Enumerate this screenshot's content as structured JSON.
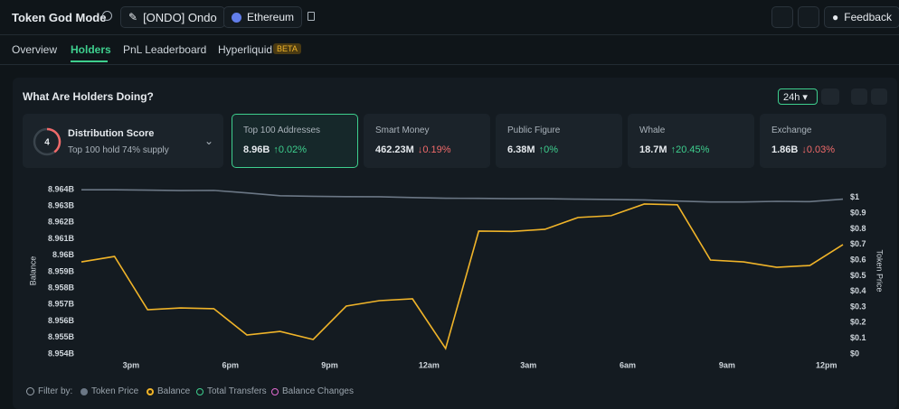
{
  "header": {
    "title": "Token God Mode",
    "token": "[ONDO] Ondo",
    "chain": "Ethereum",
    "feedback": "Feedback"
  },
  "tabs": [
    {
      "label": "Overview"
    },
    {
      "label": "Holders"
    },
    {
      "label": "PnL Leaderboard"
    },
    {
      "label": "Hyperliquid",
      "badge": "BETA"
    }
  ],
  "panel": {
    "title": "What Are Holders Doing?",
    "timeframe": "24h",
    "distribution": {
      "score": 4,
      "title": "Distribution Score",
      "subtitle": "Top 100 hold 74% supply"
    },
    "cards": [
      {
        "title": "Top 100 Addresses",
        "value": "8.96B",
        "change": "0.02%",
        "direction": "up"
      },
      {
        "title": "Smart Money",
        "value": "462.23M",
        "change": "0.19%",
        "direction": "down"
      },
      {
        "title": "Public Figure",
        "value": "6.38M",
        "change": "0%",
        "direction": "up"
      },
      {
        "title": "Whale",
        "value": "18.7M",
        "change": "20.45%",
        "direction": "up"
      },
      {
        "title": "Exchange",
        "value": "1.86B",
        "change": "0.03%",
        "direction": "down"
      }
    ],
    "filter": {
      "label": "Filter by:",
      "extra": [
        "Total Transfers",
        "Balance Changes"
      ]
    }
  },
  "chart_data": {
    "type": "line",
    "x": [
      1.5,
      2.5,
      3.5,
      4.5,
      5.5,
      6.5,
      7.5,
      8.5,
      9.5,
      10.5,
      11.5,
      12.5,
      13.5,
      14.5,
      15.5,
      16.5,
      17.5,
      18.5,
      19.5,
      20.5,
      21.5,
      22.5,
      23.5,
      24.5
    ],
    "xlim": [
      1.5,
      24.5
    ],
    "xticks": [
      {
        "value": 3,
        "label": "3pm"
      },
      {
        "value": 6,
        "label": "6pm"
      },
      {
        "value": 9,
        "label": "9pm"
      },
      {
        "value": 12,
        "label": "12am"
      },
      {
        "value": 15,
        "label": "3am"
      },
      {
        "value": 18,
        "label": "6am"
      },
      {
        "value": 21,
        "label": "9am"
      },
      {
        "value": 24,
        "label": "12pm"
      }
    ],
    "ylabel": "Balance",
    "y2label": "Token Price",
    "ylim": [
      8.954,
      8.96427
    ],
    "yticks": [
      {
        "value": 8.954,
        "label": "8.954B"
      },
      {
        "value": 8.955,
        "label": "8.955B"
      },
      {
        "value": 8.956,
        "label": "8.956B"
      },
      {
        "value": 8.957,
        "label": "8.957B"
      },
      {
        "value": 8.958,
        "label": "8.958B"
      },
      {
        "value": 8.959,
        "label": "8.959B"
      },
      {
        "value": 8.96,
        "label": "8.96B"
      },
      {
        "value": 8.961,
        "label": "8.961B"
      },
      {
        "value": 8.962,
        "label": "8.962B"
      },
      {
        "value": 8.963,
        "label": "8.963B"
      },
      {
        "value": 8.964,
        "label": "8.964B"
      }
    ],
    "y2lim": [
      0,
      1.08
    ],
    "y2ticks": [
      {
        "value": 0,
        "label": "$0"
      },
      {
        "value": 0.1,
        "label": "$0.1"
      },
      {
        "value": 0.2,
        "label": "$0.2"
      },
      {
        "value": 0.3,
        "label": "$0.3"
      },
      {
        "value": 0.4,
        "label": "$0.4"
      },
      {
        "value": 0.5,
        "label": "$0.5"
      },
      {
        "value": 0.6,
        "label": "$0.6"
      },
      {
        "value": 0.7,
        "label": "$0.7"
      },
      {
        "value": 0.8,
        "label": "$0.8"
      },
      {
        "value": 0.9,
        "label": "$0.9"
      },
      {
        "value": 1,
        "label": "$1"
      }
    ],
    "series": [
      {
        "name": "Token Price",
        "color": "#6b7785",
        "axis": "y2",
        "values": [
          1.05,
          1.05,
          1.048,
          1.045,
          1.046,
          1.03,
          1.012,
          1.008,
          1.006,
          1.005,
          1.0,
          0.996,
          0.995,
          0.993,
          0.993,
          0.99,
          0.988,
          0.985,
          0.978,
          0.972,
          0.972,
          0.976,
          0.974,
          0.99
        ]
      },
      {
        "name": "Balance",
        "color": "#f0b429",
        "values": [
          8.9596,
          8.95993,
          8.95669,
          8.9568,
          8.95675,
          8.95515,
          8.95537,
          8.95488,
          8.95691,
          8.95724,
          8.95735,
          8.95433,
          8.96147,
          8.96145,
          8.96158,
          8.9623,
          8.96241,
          8.96312,
          8.96307,
          8.95971,
          8.9596,
          8.95927,
          8.95938,
          8.96065
        ]
      }
    ]
  }
}
